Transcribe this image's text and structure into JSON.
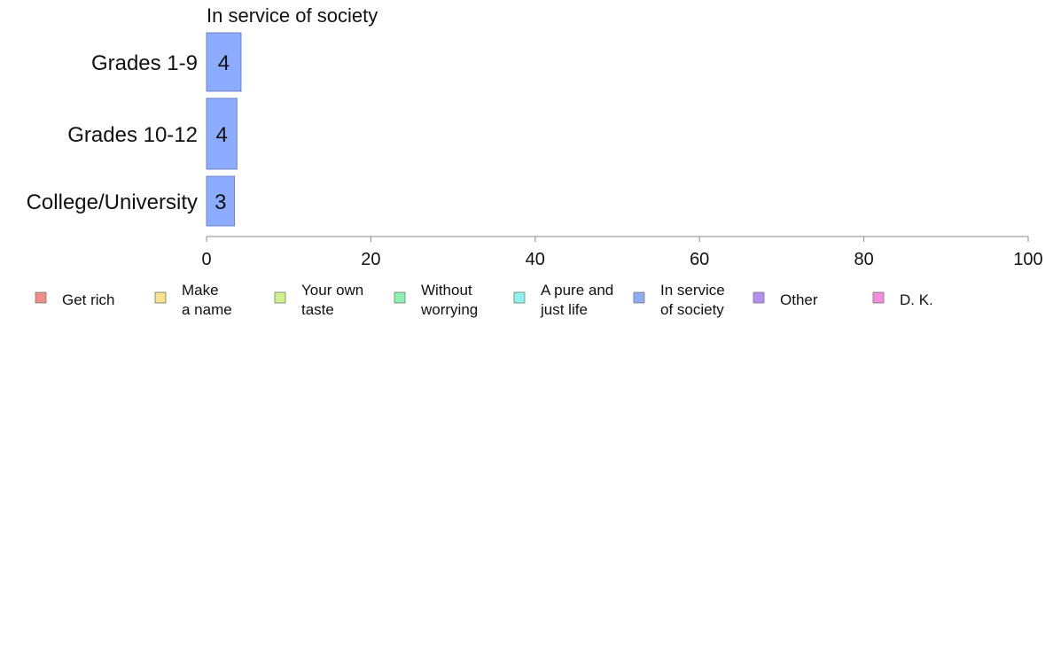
{
  "chart_data": {
    "type": "bar",
    "orientation": "horizontal",
    "title": "In service of society",
    "xlabel": "",
    "ylabel": "",
    "categories": [
      "Grades 1-9",
      "Grades 10-12",
      "College/University"
    ],
    "series": [
      {
        "name": "In service of society",
        "values": [
          4.2,
          3.7,
          3.4
        ],
        "labels": [
          "4",
          "4",
          "3"
        ]
      }
    ],
    "xlim": [
      0,
      100
    ],
    "xticks": [
      "0",
      "20",
      "40",
      "60",
      "80",
      "100"
    ],
    "grid": false,
    "legend_position": "bottom",
    "legend": [
      {
        "label": "Get rich",
        "color": "#f28b8b"
      },
      {
        "label": "Make\na name",
        "color": "#f7e08a"
      },
      {
        "label": "Your own\ntaste",
        "color": "#cff28b"
      },
      {
        "label": "Without\nworrying",
        "color": "#8bf2b0"
      },
      {
        "label": "A pure and\njust life",
        "color": "#8bf2ee"
      },
      {
        "label": "In service\nof society",
        "color": "#8dabf7"
      },
      {
        "label": "Other",
        "color": "#b78bf2"
      },
      {
        "label": "D. K.",
        "color": "#f28be0"
      }
    ],
    "bar_color": "#8dabff"
  }
}
